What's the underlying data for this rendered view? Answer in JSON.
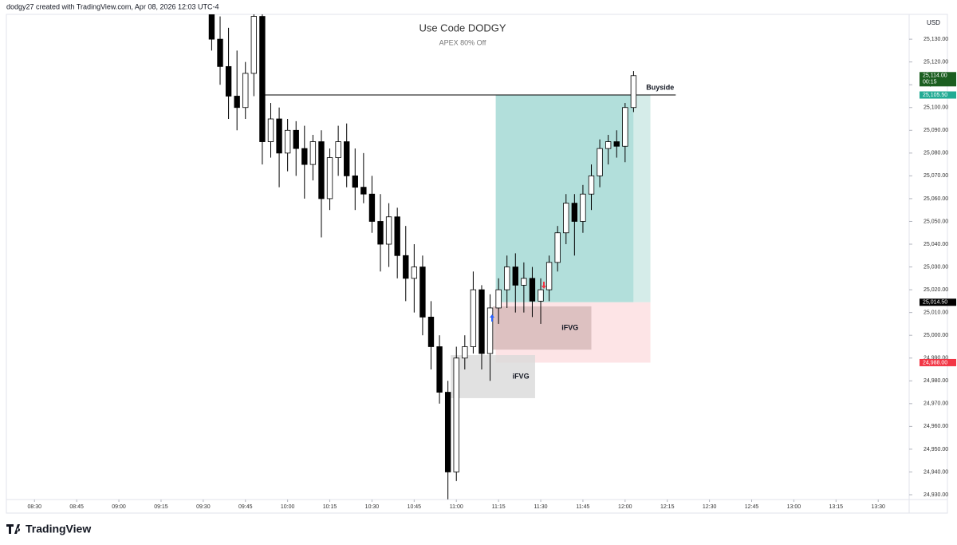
{
  "chart_data": {
    "type": "candlestick",
    "header": "dodgy27 created with TradingView.com, Apr 08, 2026 12:03 UTC-4",
    "title": "Use Code DODGY",
    "subtitle": "APEX 80% Off",
    "currency": "USD",
    "brand": "TradingView",
    "up_color": "#ffffff",
    "down_color": "#000000",
    "x": [
      "09:33",
      "09:36",
      "09:39",
      "09:42",
      "09:45",
      "09:48",
      "09:51",
      "09:54",
      "09:57",
      "10:00",
      "10:03",
      "10:06",
      "10:09",
      "10:12",
      "10:15",
      "10:18",
      "10:21",
      "10:24",
      "10:27",
      "10:30",
      "10:33",
      "10:36",
      "10:39",
      "10:42",
      "10:45",
      "10:48",
      "10:51",
      "10:54",
      "10:57",
      "11:00",
      "11:03",
      "11:06",
      "11:09",
      "11:12",
      "11:15",
      "11:18",
      "11:21",
      "11:24",
      "11:27",
      "11:30",
      "11:33",
      "11:36",
      "11:39",
      "11:42",
      "11:45",
      "11:48",
      "11:51",
      "11:54",
      "11:57",
      "12:00",
      "12:03"
    ],
    "open": [
      25150,
      25130,
      25118,
      25105,
      25100,
      25115,
      25140,
      25085,
      25095,
      25080,
      25090,
      25082,
      25075,
      25085,
      25060,
      25078,
      25085,
      25070,
      25065,
      25062,
      25050,
      25040,
      25052,
      25035,
      25025,
      25030,
      25008,
      24995,
      24975,
      24940,
      24990,
      24995,
      25020,
      24992,
      25012,
      25020,
      25030,
      25022,
      25025,
      25015,
      25020,
      25032,
      25045,
      25058,
      25050,
      25062,
      25070,
      25082,
      25085,
      25083,
      25100
    ],
    "high": [
      25160,
      25140,
      25135,
      25125,
      25120,
      25150,
      25145,
      25102,
      25100,
      25095,
      25094,
      25092,
      25088,
      25090,
      25082,
      25092,
      25093,
      25082,
      25080,
      25070,
      25062,
      25058,
      25056,
      25048,
      25040,
      25035,
      25015,
      25000,
      24980,
      24995,
      25000,
      25028,
      25022,
      25018,
      25025,
      25035,
      25036,
      25032,
      25030,
      25025,
      25035,
      25048,
      25062,
      25062,
      25066,
      25075,
      25086,
      25088,
      25090,
      25102,
      25116
    ],
    "low": [
      25125,
      25110,
      25095,
      25090,
      25095,
      25105,
      25075,
      25078,
      25065,
      25072,
      25070,
      25060,
      25068,
      25043,
      25055,
      25070,
      25065,
      25055,
      25058,
      25045,
      25028,
      25030,
      25025,
      25015,
      25010,
      25000,
      24985,
      24970,
      24928,
      24936,
      24985,
      24992,
      24985,
      24980,
      25005,
      25012,
      25010,
      25010,
      25008,
      25005,
      25015,
      25028,
      25040,
      25035,
      25045,
      25055,
      25065,
      25075,
      25078,
      25076,
      25098
    ],
    "close": [
      25130,
      25118,
      25105,
      25100,
      25115,
      25140,
      25085,
      25095,
      25080,
      25090,
      25082,
      25075,
      25085,
      25060,
      25078,
      25085,
      25070,
      25065,
      25062,
      25050,
      25040,
      25052,
      25035,
      25025,
      25030,
      25008,
      24995,
      24975,
      24940,
      24990,
      24995,
      25020,
      24992,
      25012,
      25020,
      25030,
      25022,
      25025,
      25015,
      25020,
      25032,
      25045,
      25058,
      25050,
      25062,
      25070,
      25082,
      25085,
      25083,
      25100,
      25114
    ],
    "xlim": [
      "08:20",
      "13:41"
    ],
    "xticks": [
      "08:30",
      "08:45",
      "09:00",
      "09:15",
      "09:30",
      "09:45",
      "10:00",
      "10:15",
      "10:30",
      "10:45",
      "11:00",
      "11:15",
      "11:30",
      "11:45",
      "12:00",
      "12:15",
      "12:30",
      "12:45",
      "13:00",
      "13:15",
      "13:30"
    ],
    "ylim": [
      24927.9,
      25140.9
    ],
    "yticks": [
      {
        "value": 24930,
        "label": "24,930.00"
      },
      {
        "value": 24940,
        "label": "24,940.00"
      },
      {
        "value": 24950,
        "label": "24,950.00"
      },
      {
        "value": 24960,
        "label": "24,960.00"
      },
      {
        "value": 24970,
        "label": "24,970.00"
      },
      {
        "value": 24980,
        "label": "24,980.00"
      },
      {
        "value": 24990,
        "label": "24,990.00"
      },
      {
        "value": 25000,
        "label": "25,000.00"
      },
      {
        "value": 25010,
        "label": "25,010.00"
      },
      {
        "value": 25020,
        "label": "25,020.00"
      },
      {
        "value": 25030,
        "label": "25,030.00"
      },
      {
        "value": 25040,
        "label": "25,040.00"
      },
      {
        "value": 25050,
        "label": "25,050.00"
      },
      {
        "value": 25060,
        "label": "25,060.00"
      },
      {
        "value": 25070,
        "label": "25,070.00"
      },
      {
        "value": 25080,
        "label": "25,080.00"
      },
      {
        "value": 25090,
        "label": "25,090.00"
      },
      {
        "value": 25100,
        "label": "25,100.00"
      },
      {
        "value": 25110,
        "label": "25,110.00"
      },
      {
        "value": 25120,
        "label": "25,120.00"
      },
      {
        "value": 25130,
        "label": "25,130.00"
      }
    ],
    "price_tags": [
      {
        "value": 25114,
        "label": "25,114.00",
        "color": "#1b5e20",
        "timer": "00:15"
      },
      {
        "value": 25105.5,
        "label": "25,105.50",
        "color": "#22ab94"
      },
      {
        "value": 25014.5,
        "label": "25,014.50",
        "color": "#000000"
      },
      {
        "value": 24988,
        "label": "24,988.00",
        "color": "#f23645"
      }
    ],
    "position": {
      "start": "11:14",
      "now": "12:03",
      "end": "12:09",
      "target": 25105.5,
      "entry": 25014.5,
      "stop": 24988
    },
    "level": {
      "label": "Buyside",
      "value": 25105.5,
      "x": [
        "09:52",
        "12:18"
      ]
    },
    "zones": [
      {
        "label": "iFVG",
        "x": [
          "10:58",
          "11:28"
        ],
        "y": [
          24972.4,
          24991.3
        ],
        "color": "#d9d9d9"
      },
      {
        "label": "iFVG",
        "x": [
          "11:13",
          "11:48"
        ],
        "y": [
          24993.7,
          25012.7
        ],
        "color": "#d4b8b8"
      }
    ]
  }
}
